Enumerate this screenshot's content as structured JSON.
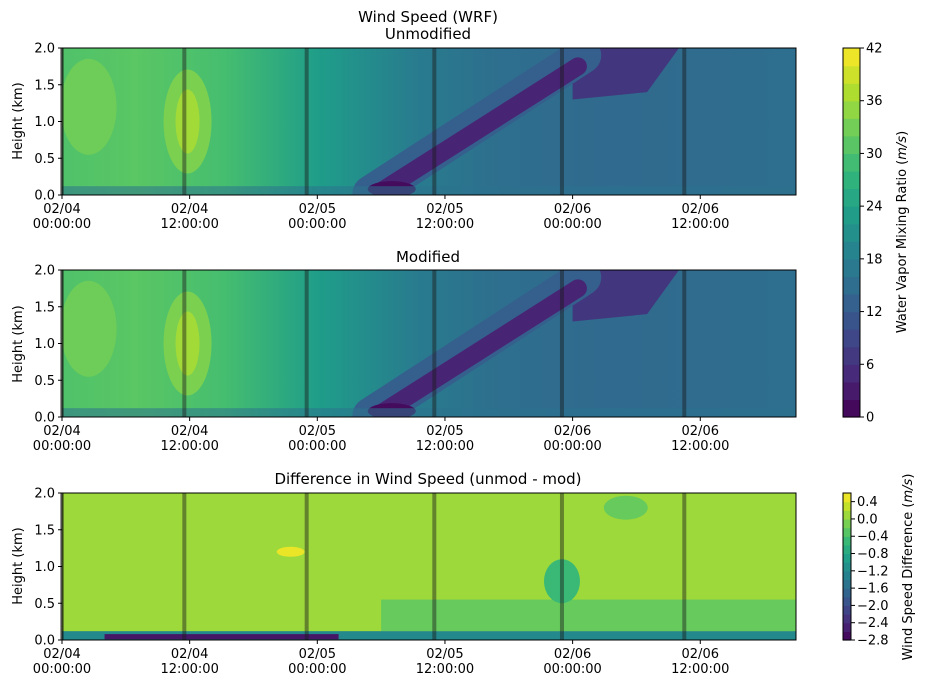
{
  "figure": {
    "title": "Wind Speed (WRF)"
  },
  "chart_data": [
    {
      "type": "heatmap",
      "panel": "unmodified",
      "title": "Unmodified",
      "ylabel": "Height (km)",
      "xlabel": "",
      "ylim": [
        0,
        2.0
      ],
      "yticks": [
        "0.0",
        "0.5",
        "1.0",
        "1.5",
        "2.0"
      ],
      "xticks": [
        {
          "date": "02/04",
          "time": "00:00:00",
          "hours": 0
        },
        {
          "date": "02/04",
          "time": "12:00:00",
          "hours": 12
        },
        {
          "date": "02/05",
          "time": "00:00:00",
          "hours": 24
        },
        {
          "date": "02/05",
          "time": "12:00:00",
          "hours": 36
        },
        {
          "date": "02/06",
          "time": "00:00:00",
          "hours": 48
        },
        {
          "date": "02/06",
          "time": "12:00:00",
          "hours": 60
        }
      ],
      "xlim_hours": [
        0,
        69
      ],
      "vertical_lines_hours": [
        0,
        11.5,
        23,
        35,
        47,
        58.5
      ],
      "value_range": [
        0,
        42
      ],
      "colormap": "viridis"
    },
    {
      "type": "heatmap",
      "panel": "modified",
      "title": "Modified",
      "ylabel": "Height (km)",
      "xlabel": "",
      "ylim": [
        0,
        2.0
      ],
      "yticks": [
        "0.0",
        "0.5",
        "1.0",
        "1.5",
        "2.0"
      ],
      "xticks": [
        {
          "date": "02/04",
          "time": "00:00:00",
          "hours": 0
        },
        {
          "date": "02/04",
          "time": "12:00:00",
          "hours": 12
        },
        {
          "date": "02/05",
          "time": "00:00:00",
          "hours": 24
        },
        {
          "date": "02/05",
          "time": "12:00:00",
          "hours": 36
        },
        {
          "date": "02/06",
          "time": "00:00:00",
          "hours": 48
        },
        {
          "date": "02/06",
          "time": "12:00:00",
          "hours": 60
        }
      ],
      "xlim_hours": [
        0,
        69
      ],
      "vertical_lines_hours": [
        0,
        11.5,
        23,
        35,
        47,
        58.5
      ],
      "value_range": [
        0,
        42
      ],
      "colormap": "viridis"
    },
    {
      "type": "heatmap",
      "panel": "difference",
      "title": "Difference in Wind Speed (unmod - mod)",
      "ylabel": "Height (km)",
      "xlabel": "",
      "ylim": [
        0,
        2.0
      ],
      "yticks": [
        "0.0",
        "0.5",
        "1.0",
        "1.5",
        "2.0"
      ],
      "xticks": [
        {
          "date": "02/04",
          "time": "00:00:00",
          "hours": 0
        },
        {
          "date": "02/04",
          "time": "12:00:00",
          "hours": 12
        },
        {
          "date": "02/05",
          "time": "00:00:00",
          "hours": 24
        },
        {
          "date": "02/05",
          "time": "12:00:00",
          "hours": 36
        },
        {
          "date": "02/06",
          "time": "00:00:00",
          "hours": 48
        },
        {
          "date": "02/06",
          "time": "12:00:00",
          "hours": 60
        }
      ],
      "xlim_hours": [
        0,
        69
      ],
      "vertical_lines_hours": [
        0,
        11.5,
        23,
        35,
        47,
        58.5
      ],
      "value_range": [
        -2.8,
        0.6
      ],
      "colormap": "viridis"
    }
  ],
  "colorbars": [
    {
      "label": "Water Vapor Mixing Ratio (m/s)",
      "label_prefix": "Water Vapor Mixing Ratio (",
      "label_unit": "m/s",
      "label_suffix": ")",
      "range": [
        0,
        42
      ],
      "ticks": [
        "0",
        "6",
        "12",
        "18",
        "24",
        "30",
        "36",
        "42"
      ],
      "levels": 21
    },
    {
      "label": "Wind Speed Difference (m/s)",
      "label_prefix": "Wind Speed Difference (",
      "label_unit": "m/s",
      "label_suffix": ")",
      "range": [
        -2.8,
        0.6
      ],
      "ticks": [
        "−2.8",
        "−2.4",
        "−2.0",
        "−1.6",
        "−1.2",
        "−0.8",
        "−0.4",
        "0.0",
        "0.4"
      ],
      "levels": 17
    }
  ]
}
